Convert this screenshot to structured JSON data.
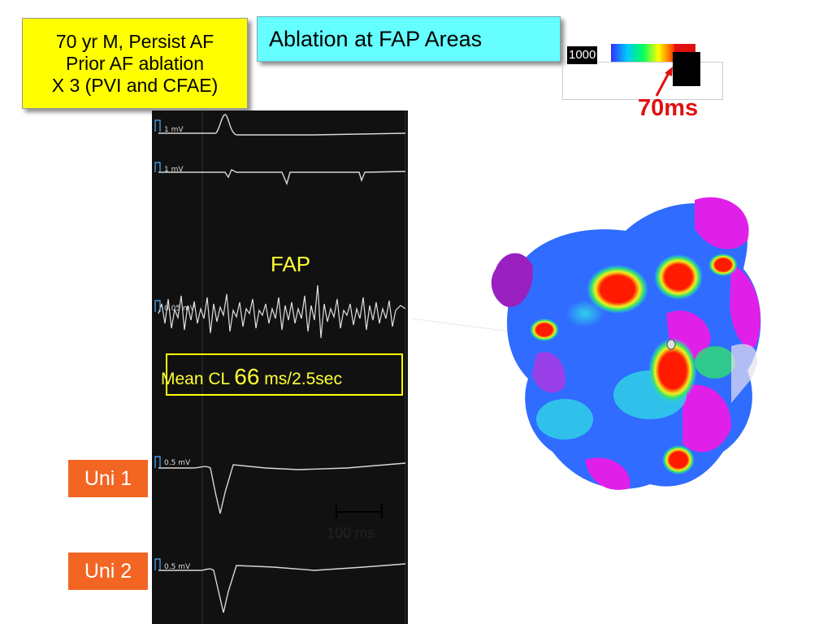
{
  "patient_box": {
    "line1": "70 yr M, Persist AF",
    "line2": "Prior AF ablation",
    "line3": "X 3 (PVI and CFAE)"
  },
  "title": "Ablation at FAP Areas",
  "colorbar": {
    "max_label": "1000",
    "pointer_label": "70ms",
    "colors": [
      "#3030ff",
      "#00c8ff",
      "#00ff60",
      "#ffff00",
      "#ff3000",
      "#ff00ff"
    ]
  },
  "egm": {
    "channels": [
      {
        "scale": "1 mV"
      },
      {
        "scale": "1 mV"
      },
      {
        "scale": "0.05 mV"
      },
      {
        "scale": "0.5 mV"
      },
      {
        "scale": "0.5 mV"
      }
    ],
    "fap_label": "FAP",
    "mean_cl_prefix": "Mean CL ",
    "mean_cl_value": "66",
    "mean_cl_suffix": " ms/2.5sec",
    "scale_bar_label": "100 ms"
  },
  "uni_labels": [
    "Uni 1",
    "Uni 2"
  ],
  "map": {
    "colors": {
      "magenta": "#e020e8",
      "purple": "#8a2be2",
      "blue": "#2f6cff",
      "cyan": "#30d0e8",
      "green": "#30e070",
      "yellow": "#f0f020",
      "red": "#ff1a00"
    }
  }
}
